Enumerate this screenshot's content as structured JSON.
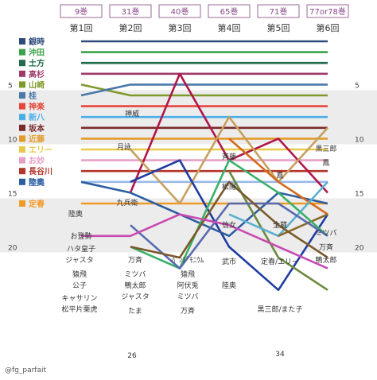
{
  "chart_data": {
    "type": "line",
    "title": "",
    "volume_headers": [
      "9巻",
      "31巻",
      "40巻",
      "65巻",
      "71巻",
      "77or78巻"
    ],
    "rounds": [
      "第1回",
      "第2回",
      "第3回",
      "第4回",
      "第5回",
      "第6回"
    ],
    "rank_ticks_left": [
      "5",
      "10",
      "15",
      "20"
    ],
    "rank_ticks_right": [
      "5",
      "10",
      "15",
      "20"
    ],
    "ylim": [
      1,
      25
    ],
    "legend_position": "left",
    "watermark": "@fg_parfait",
    "colors": {
      "band": "#ececec",
      "header_border": "#9a6a9a",
      "header_text": "#8a4a8a"
    },
    "series": [
      {
        "name": "銀時",
        "color": "#2d4a7a",
        "values": [
          1,
          1,
          1,
          1,
          1,
          1
        ]
      },
      {
        "name": "沖田",
        "color": "#3aa24a",
        "values": [
          2,
          2,
          2,
          2,
          2,
          2
        ]
      },
      {
        "name": "土方",
        "color": "#1f6b4a",
        "values": [
          3,
          3,
          3,
          3,
          3,
          3
        ]
      },
      {
        "name": "高杉",
        "color": "#a03a6a",
        "values": [
          4,
          4,
          4,
          4,
          4,
          4
        ]
      },
      {
        "name": "山崎",
        "color": "#7f9a2c",
        "values": [
          5,
          6,
          6,
          6,
          6,
          6
        ]
      },
      {
        "name": "桂",
        "color": "#4a78a8",
        "values": [
          6,
          5,
          5,
          5,
          5,
          5
        ]
      },
      {
        "name": "神楽",
        "color": "#e5473a",
        "values": [
          7,
          7,
          7,
          7,
          7,
          7
        ]
      },
      {
        "name": "新八",
        "color": "#4aaee8",
        "values": [
          8,
          8,
          8,
          8,
          8,
          8
        ]
      },
      {
        "name": "坂本",
        "color": "#7a2a2a",
        "values": [
          9,
          9,
          9,
          9,
          9,
          9
        ]
      },
      {
        "name": "近藤",
        "color": "#e39a2a",
        "values": [
          10,
          10,
          10,
          10,
          10,
          10
        ]
      },
      {
        "name": "エリー",
        "color": "#e8c94a",
        "values": [
          11,
          11,
          11,
          11,
          11,
          11
        ]
      },
      {
        "name": "お妙",
        "color": "#e6a0c8",
        "values": [
          12,
          12,
          12,
          12,
          12,
          12
        ]
      },
      {
        "name": "長谷川",
        "color": "#b2352a",
        "values": [
          13,
          13,
          13,
          13,
          13,
          13
        ]
      },
      {
        "name": "空知",
        "color": "#9ab8e8",
        "values": [
          14,
          14,
          14,
          14,
          14,
          14
        ]
      },
      {
        "name": "定春",
        "color": "#f09a2a",
        "values": [
          16,
          16,
          16,
          16,
          16,
          16
        ]
      },
      {
        "name": "神威",
        "color": "#b0174a",
        "values": [
          null,
          15,
          4,
          12,
          10,
          15
        ]
      },
      {
        "name": "月詠",
        "color": "#c7a060",
        "values": [
          null,
          11,
          16,
          8,
          14,
          9
        ]
      },
      {
        "name": "九兵衛",
        "color": "#1f3ca0",
        "values": [
          null,
          14,
          12,
          20,
          24,
          17
        ]
      },
      {
        "name": "陸奥",
        "color": "#2c5ea0",
        "values": [
          14,
          15,
          17,
          19,
          15,
          16
        ]
      },
      {
        "name": "斉藤",
        "color": "#d26a1a",
        "values": [
          null,
          null,
          null,
          10,
          14,
          17
        ]
      },
      {
        "name": "松陽",
        "color": "#6a8a40",
        "values": [
          null,
          null,
          null,
          13,
          21,
          24
        ]
      },
      {
        "name": "信女",
        "color": "#5ab0d0",
        "values": [
          null,
          null,
          null,
          17,
          19,
          14
        ]
      },
      {
        "name": "全蔵",
        "color": "#8a6a2c",
        "values": [
          null,
          null,
          null,
          null,
          19,
          17
        ]
      },
      {
        "name": "ミツバ",
        "color": "#3ab06a",
        "values": [
          null,
          20,
          22,
          12,
          15,
          19
        ]
      },
      {
        "name": "万斉",
        "color": "#5a6ab0",
        "values": [
          null,
          18,
          22,
          16,
          16,
          19
        ]
      },
      {
        "name": "鴨太郎",
        "color": "#7a5a2a",
        "values": [
          null,
          20,
          21,
          14,
          18,
          21
        ]
      },
      {
        "name": "猿飛",
        "color": "#c84ab0",
        "values": [
          19,
          19,
          17,
          18,
          20,
          22
        ]
      }
    ],
    "annotations": [
      "神威",
      "月詠",
      "九兵衛",
      "陸奥",
      "お登勢",
      "ハタ皇子",
      "ジャスタ",
      "猿飛",
      "公子",
      "キャサリン",
      "松平片栗虎",
      "万斉",
      "ミツバ",
      "鴨太郎",
      "ジャスタ",
      "たま",
      "26",
      "ﾊﾟﾝﾃﾞﾓﾆｳﾑ",
      "猿飛",
      "阿伏兎",
      "ミツバ",
      "万斉",
      "斉藤",
      "松陽",
      "信女",
      "武市",
      "陸奥",
      "鳳",
      "全蔵",
      "定春/エリー",
      "黒三郎/また子",
      "34",
      "黒三郎",
      "鳳",
      "ミツバ",
      "万斉",
      "鴨太郎"
    ]
  }
}
